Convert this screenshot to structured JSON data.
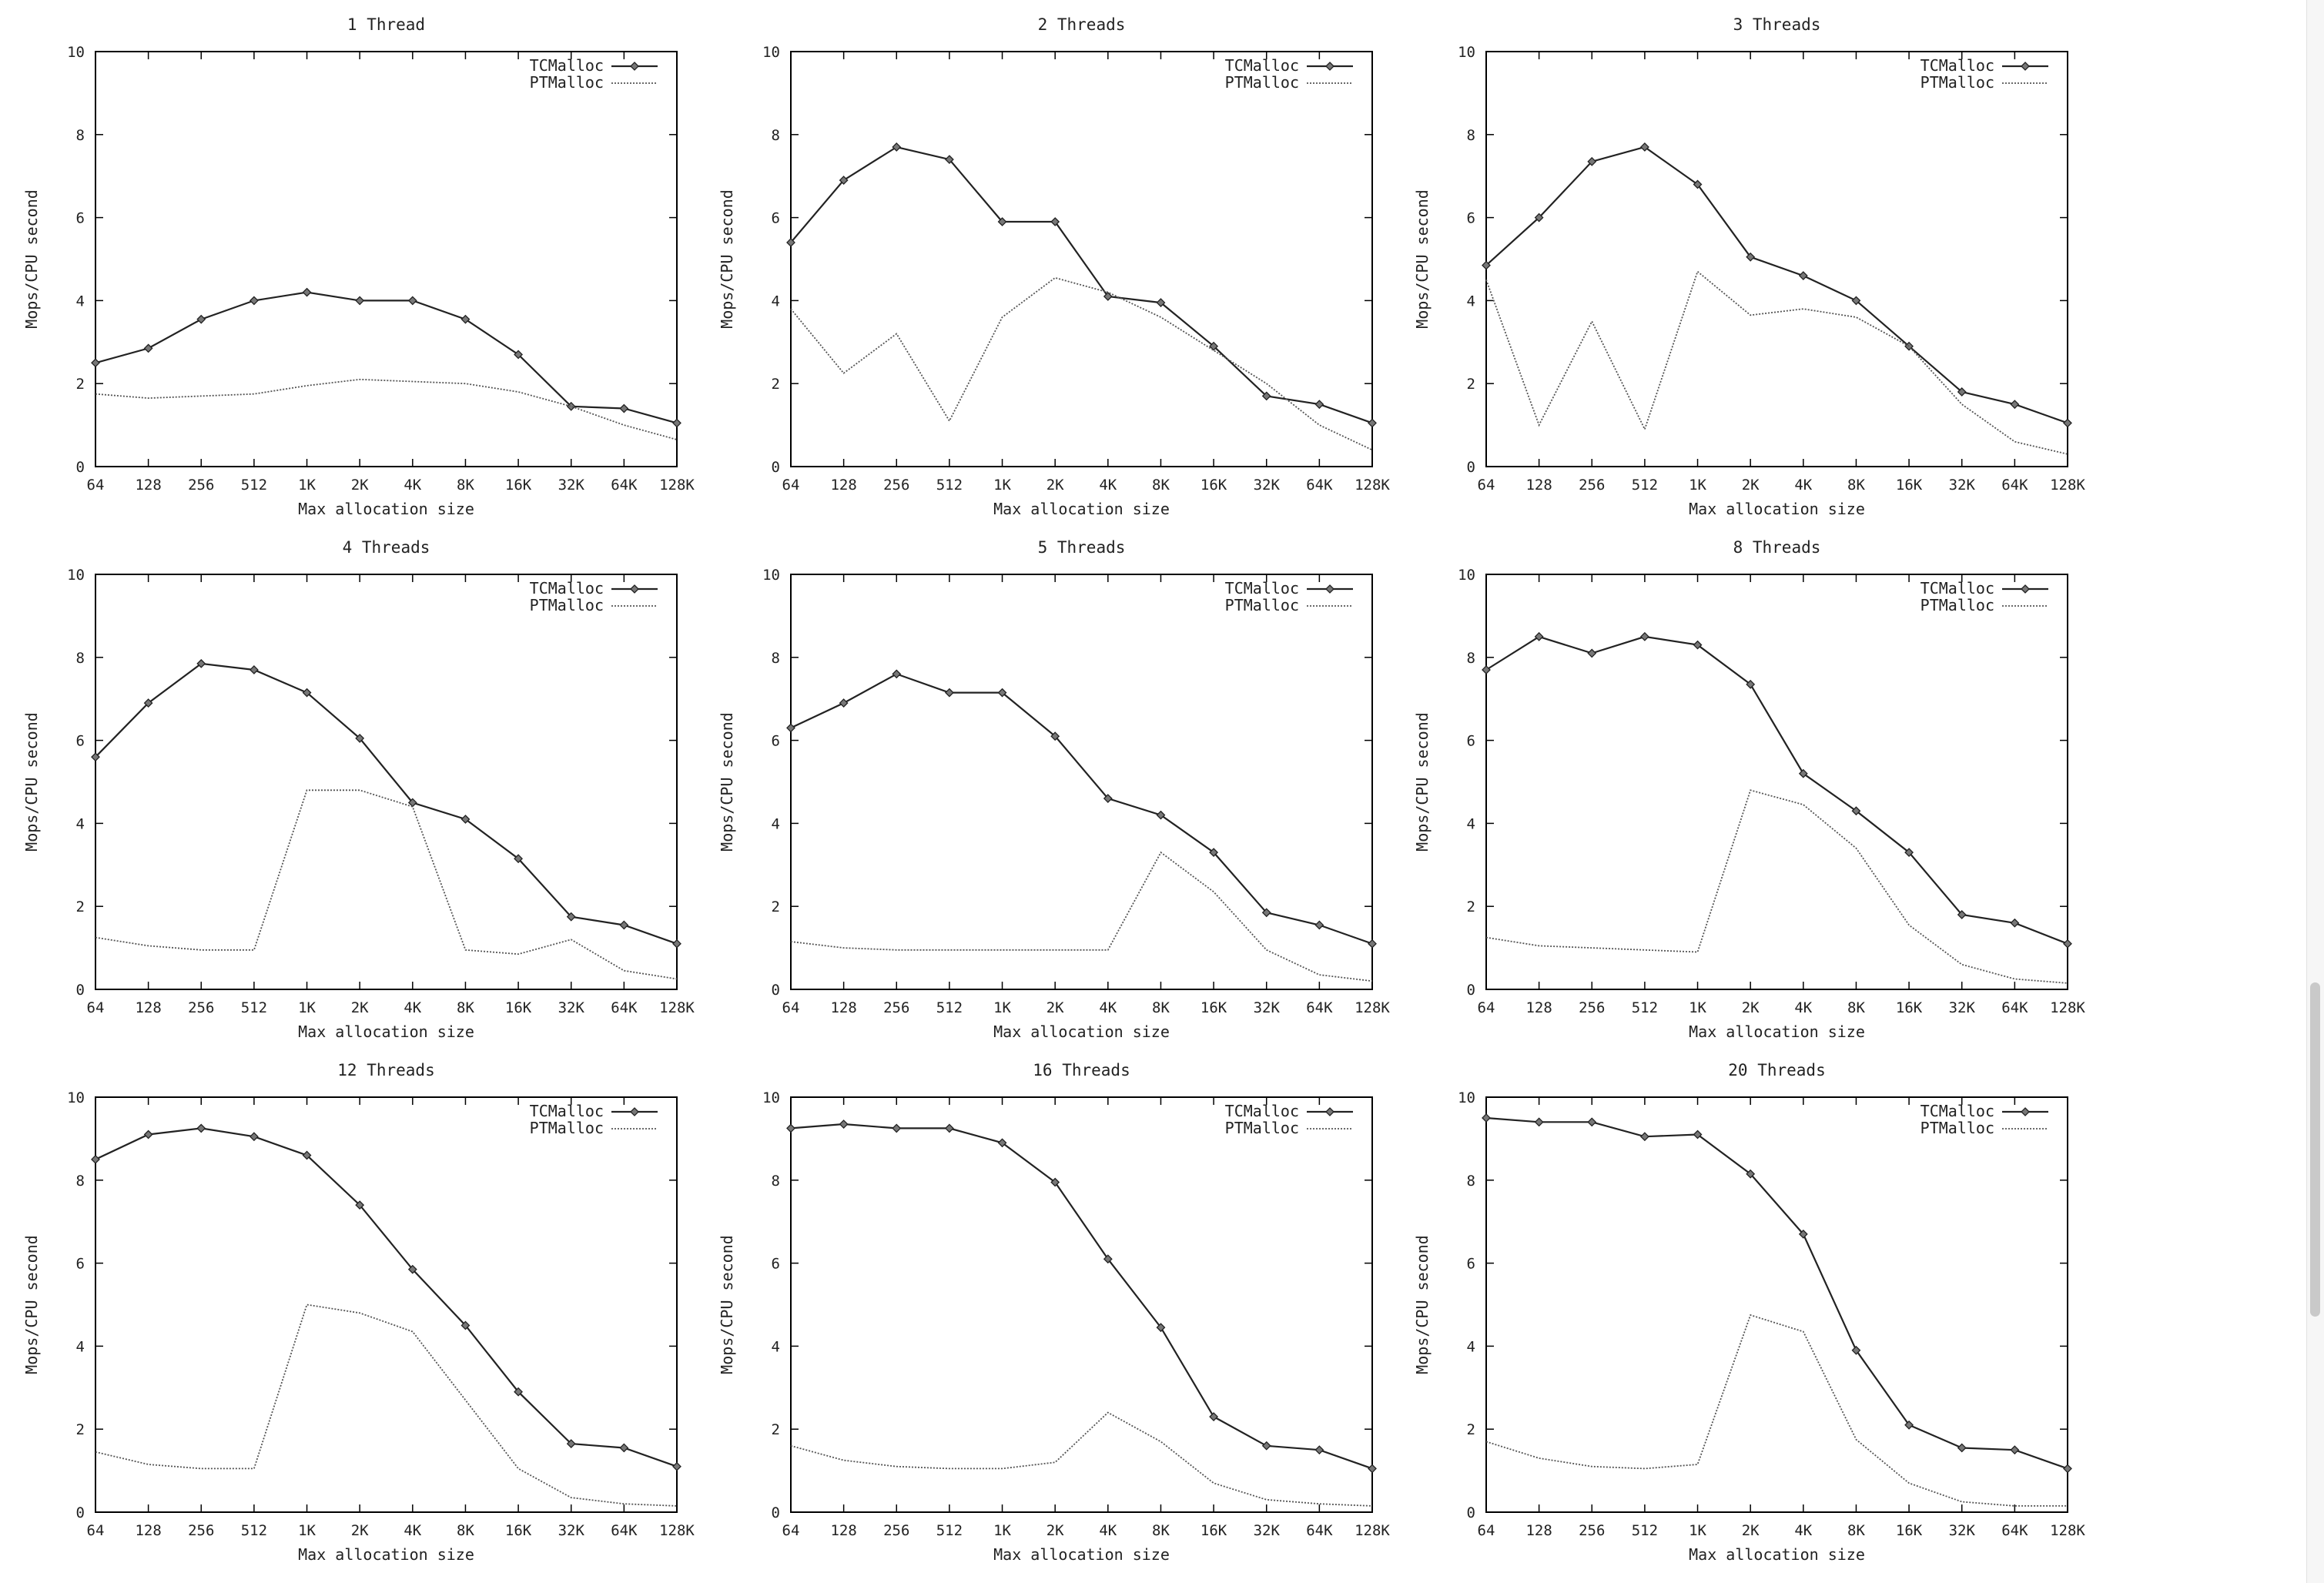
{
  "colors": {
    "tcmalloc": "#222222",
    "ptmalloc": "#555555",
    "frame": "#000000"
  },
  "scrollbar": {
    "label": "vertical-scrollbar"
  },
  "chart_data": [
    {
      "type": "line",
      "title": "1 Thread",
      "xlabel": "Max allocation size",
      "ylabel": "Mops/CPU second",
      "categories": [
        "64",
        "128",
        "256",
        "512",
        "1K",
        "2K",
        "4K",
        "8K",
        "16K",
        "32K",
        "64K",
        "128K"
      ],
      "yticks": [
        "0",
        "2",
        "4",
        "6",
        "8",
        "10"
      ],
      "ylim": [
        0,
        10
      ],
      "legend": "top-right",
      "series": [
        {
          "name": "TCMalloc",
          "values": [
            2.5,
            2.85,
            3.55,
            4.0,
            4.2,
            4.0,
            4.0,
            3.55,
            2.7,
            1.45,
            1.4,
            1.05
          ]
        },
        {
          "name": "PTMalloc",
          "values": [
            1.75,
            1.65,
            1.7,
            1.75,
            1.95,
            2.1,
            2.05,
            2.0,
            1.8,
            1.45,
            1.0,
            0.65
          ]
        }
      ]
    },
    {
      "type": "line",
      "title": "2 Threads",
      "xlabel": "Max allocation size",
      "ylabel": "Mops/CPU second",
      "categories": [
        "64",
        "128",
        "256",
        "512",
        "1K",
        "2K",
        "4K",
        "8K",
        "16K",
        "32K",
        "64K",
        "128K"
      ],
      "yticks": [
        "0",
        "2",
        "4",
        "6",
        "8",
        "10"
      ],
      "ylim": [
        0,
        10
      ],
      "legend": "top-right",
      "series": [
        {
          "name": "TCMalloc",
          "values": [
            5.4,
            6.9,
            7.7,
            7.4,
            5.9,
            5.9,
            4.1,
            3.95,
            2.9,
            1.7,
            1.5,
            1.05
          ]
        },
        {
          "name": "PTMalloc",
          "values": [
            3.8,
            2.25,
            3.2,
            1.1,
            3.6,
            4.55,
            4.2,
            3.6,
            2.8,
            2.0,
            1.0,
            0.4
          ]
        }
      ]
    },
    {
      "type": "line",
      "title": "3 Threads",
      "xlabel": "Max allocation size",
      "ylabel": "Mops/CPU second",
      "categories": [
        "64",
        "128",
        "256",
        "512",
        "1K",
        "2K",
        "4K",
        "8K",
        "16K",
        "32K",
        "64K",
        "128K"
      ],
      "yticks": [
        "0",
        "2",
        "4",
        "6",
        "8",
        "10"
      ],
      "ylim": [
        0,
        10
      ],
      "legend": "top-right",
      "series": [
        {
          "name": "TCMalloc",
          "values": [
            4.85,
            6.0,
            7.35,
            7.7,
            6.8,
            5.05,
            4.6,
            4.0,
            2.9,
            1.8,
            1.5,
            1.05
          ]
        },
        {
          "name": "PTMalloc",
          "values": [
            4.5,
            1.0,
            3.5,
            0.9,
            4.7,
            3.65,
            3.8,
            3.6,
            2.9,
            1.5,
            0.6,
            0.3
          ]
        }
      ]
    },
    {
      "type": "line",
      "title": "4 Threads",
      "xlabel": "Max allocation size",
      "ylabel": "Mops/CPU second",
      "categories": [
        "64",
        "128",
        "256",
        "512",
        "1K",
        "2K",
        "4K",
        "8K",
        "16K",
        "32K",
        "64K",
        "128K"
      ],
      "yticks": [
        "0",
        "2",
        "4",
        "6",
        "8",
        "10"
      ],
      "ylim": [
        0,
        10
      ],
      "legend": "top-right",
      "series": [
        {
          "name": "TCMalloc",
          "values": [
            5.6,
            6.9,
            7.85,
            7.7,
            7.15,
            6.05,
            4.5,
            4.1,
            3.15,
            1.75,
            1.55,
            1.1
          ]
        },
        {
          "name": "PTMalloc",
          "values": [
            1.25,
            1.05,
            0.95,
            0.95,
            4.8,
            4.8,
            4.4,
            0.95,
            0.85,
            1.2,
            0.45,
            0.25
          ]
        }
      ]
    },
    {
      "type": "line",
      "title": "5 Threads",
      "xlabel": "Max allocation size",
      "ylabel": "Mops/CPU second",
      "categories": [
        "64",
        "128",
        "256",
        "512",
        "1K",
        "2K",
        "4K",
        "8K",
        "16K",
        "32K",
        "64K",
        "128K"
      ],
      "yticks": [
        "0",
        "2",
        "4",
        "6",
        "8",
        "10"
      ],
      "ylim": [
        0,
        10
      ],
      "legend": "top-right",
      "series": [
        {
          "name": "TCMalloc",
          "values": [
            6.3,
            6.9,
            7.6,
            7.15,
            7.15,
            6.1,
            4.6,
            4.2,
            3.3,
            1.85,
            1.55,
            1.1
          ]
        },
        {
          "name": "PTMalloc",
          "values": [
            1.15,
            1.0,
            0.95,
            0.95,
            0.95,
            0.95,
            0.95,
            3.3,
            2.35,
            0.95,
            0.35,
            0.2
          ]
        }
      ]
    },
    {
      "type": "line",
      "title": "8 Threads",
      "xlabel": "Max allocation size",
      "ylabel": "Mops/CPU second",
      "categories": [
        "64",
        "128",
        "256",
        "512",
        "1K",
        "2K",
        "4K",
        "8K",
        "16K",
        "32K",
        "64K",
        "128K"
      ],
      "yticks": [
        "0",
        "2",
        "4",
        "6",
        "8",
        "10"
      ],
      "ylim": [
        0,
        10
      ],
      "legend": "top-right",
      "series": [
        {
          "name": "TCMalloc",
          "values": [
            7.7,
            8.5,
            8.1,
            8.5,
            8.3,
            7.35,
            5.2,
            4.3,
            3.3,
            1.8,
            1.6,
            1.1
          ]
        },
        {
          "name": "PTMalloc",
          "values": [
            1.25,
            1.05,
            1.0,
            0.95,
            0.9,
            4.8,
            4.45,
            3.4,
            1.55,
            0.6,
            0.25,
            0.15
          ]
        }
      ]
    },
    {
      "type": "line",
      "title": "12 Threads",
      "xlabel": "Max allocation size",
      "ylabel": "Mops/CPU second",
      "categories": [
        "64",
        "128",
        "256",
        "512",
        "1K",
        "2K",
        "4K",
        "8K",
        "16K",
        "32K",
        "64K",
        "128K"
      ],
      "yticks": [
        "0",
        "2",
        "4",
        "6",
        "8",
        "10"
      ],
      "ylim": [
        0,
        10
      ],
      "legend": "top-right",
      "series": [
        {
          "name": "TCMalloc",
          "values": [
            8.5,
            9.1,
            9.25,
            9.05,
            8.6,
            7.4,
            5.85,
            4.5,
            2.9,
            1.65,
            1.55,
            1.1
          ]
        },
        {
          "name": "PTMalloc",
          "values": [
            1.45,
            1.15,
            1.05,
            1.05,
            5.0,
            4.8,
            4.35,
            2.7,
            1.05,
            0.35,
            0.2,
            0.15
          ]
        }
      ]
    },
    {
      "type": "line",
      "title": "16 Threads",
      "xlabel": "Max allocation size",
      "ylabel": "Mops/CPU second",
      "categories": [
        "64",
        "128",
        "256",
        "512",
        "1K",
        "2K",
        "4K",
        "8K",
        "16K",
        "32K",
        "64K",
        "128K"
      ],
      "yticks": [
        "0",
        "2",
        "4",
        "6",
        "8",
        "10"
      ],
      "ylim": [
        0,
        10
      ],
      "legend": "top-right",
      "series": [
        {
          "name": "TCMalloc",
          "values": [
            9.25,
            9.35,
            9.25,
            9.25,
            8.9,
            7.95,
            6.1,
            4.45,
            2.3,
            1.6,
            1.5,
            1.05
          ]
        },
        {
          "name": "PTMalloc",
          "values": [
            1.6,
            1.25,
            1.1,
            1.05,
            1.05,
            1.2,
            2.4,
            1.7,
            0.7,
            0.3,
            0.2,
            0.15
          ]
        }
      ]
    },
    {
      "type": "line",
      "title": "20 Threads",
      "xlabel": "Max allocation size",
      "ylabel": "Mops/CPU second",
      "categories": [
        "64",
        "128",
        "256",
        "512",
        "1K",
        "2K",
        "4K",
        "8K",
        "16K",
        "32K",
        "64K",
        "128K"
      ],
      "yticks": [
        "0",
        "2",
        "4",
        "6",
        "8",
        "10"
      ],
      "ylim": [
        0,
        10
      ],
      "legend": "top-right",
      "series": [
        {
          "name": "TCMalloc",
          "values": [
            9.5,
            9.4,
            9.4,
            9.05,
            9.1,
            8.15,
            6.7,
            3.9,
            2.1,
            1.55,
            1.5,
            1.05
          ]
        },
        {
          "name": "PTMalloc",
          "values": [
            1.7,
            1.3,
            1.1,
            1.05,
            1.15,
            4.75,
            4.35,
            1.75,
            0.7,
            0.25,
            0.15,
            0.15
          ]
        }
      ]
    }
  ]
}
